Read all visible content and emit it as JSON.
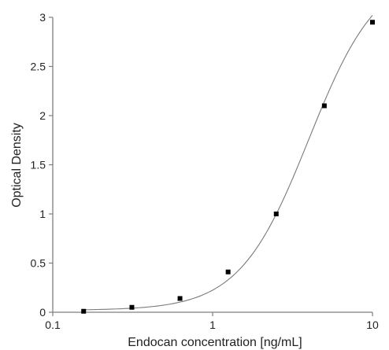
{
  "chart_data": {
    "type": "scatter",
    "title": "",
    "xlabel": "Endocan concentration [ng/mL]",
    "ylabel": "Optical Density",
    "xscale": "log",
    "xlim": [
      0.1,
      10
    ],
    "ylim": [
      0,
      3
    ],
    "grid": false,
    "legend": "none",
    "x_ticks": [
      {
        "value": 0.1,
        "label": "0.1"
      },
      {
        "value": 1,
        "label": "1"
      },
      {
        "value": 10,
        "label": "10"
      }
    ],
    "y_ticks": [
      {
        "value": 0,
        "label": "0"
      },
      {
        "value": 0.5,
        "label": "0.5"
      },
      {
        "value": 1,
        "label": "1"
      },
      {
        "value": 1.5,
        "label": "1.5"
      },
      {
        "value": 2,
        "label": "2"
      },
      {
        "value": 2.5,
        "label": "2.5"
      },
      {
        "value": 3,
        "label": "3"
      }
    ],
    "points": [
      {
        "x": 0.156,
        "y": 0.01
      },
      {
        "x": 0.3125,
        "y": 0.05
      },
      {
        "x": 0.625,
        "y": 0.14
      },
      {
        "x": 1.25,
        "y": 0.41
      },
      {
        "x": 2.5,
        "y": 1.0
      },
      {
        "x": 5,
        "y": 2.1
      },
      {
        "x": 10,
        "y": 2.95
      }
    ],
    "fit_curve": {
      "type": "4PL",
      "bottom": 0.02,
      "top": 3.5,
      "ec50": 4.0,
      "hill": 2.0
    },
    "colors": {
      "marker": "#000000",
      "curve": "#7a7a7a",
      "axis": "#7f7f7f",
      "text": "#222222"
    }
  }
}
